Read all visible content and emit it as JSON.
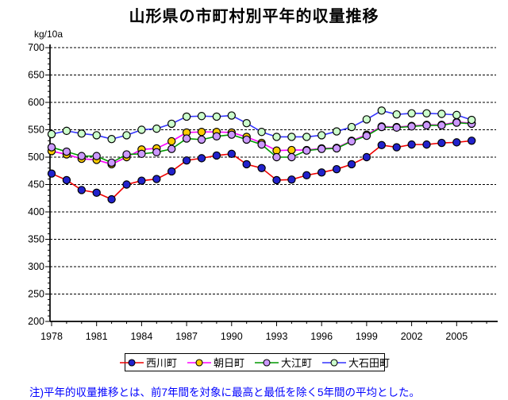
{
  "title": "山形県の市町村別平年的収量推移",
  "note": "注)平年的収量推移とは、前7年間を対象に最高と最低を除く5年間の平均とした。",
  "chart_data": {
    "type": "line",
    "title": "山形県の市町村別平年的収量推移",
    "ylabel": "kg/10a",
    "xlabel": "",
    "ylim": [
      200,
      700
    ],
    "ytick_interval": 50,
    "yticks": [
      700,
      650,
      600,
      550,
      500,
      450,
      400,
      350,
      300,
      250,
      200
    ],
    "xticks": [
      1978,
      1981,
      1984,
      1987,
      1990,
      1993,
      1996,
      1999,
      2002,
      2005
    ],
    "years": [
      1978,
      1979,
      1980,
      1981,
      1982,
      1983,
      1984,
      1985,
      1986,
      1987,
      1988,
      1989,
      1990,
      1991,
      1992,
      1993,
      1994,
      1995,
      1996,
      1997,
      1998,
      1999,
      2000,
      2001,
      2002,
      2003,
      2004,
      2005,
      2006
    ],
    "grid": "horizontal-dashed",
    "legend_position": "bottom",
    "series": [
      {
        "name": "西川町",
        "line_color": "#EE0000",
        "marker_color": "#2222CC",
        "marker": "circle",
        "values": [
          470,
          458,
          440,
          435,
          423,
          450,
          457,
          460,
          474,
          494,
          498,
          503,
          506,
          487,
          480,
          458,
          459,
          467,
          472,
          478,
          487,
          500,
          522,
          518,
          523,
          523,
          526,
          527,
          530
        ]
      },
      {
        "name": "朝日町",
        "line_color": "#FF00FF",
        "marker_color": "#FFCC00",
        "marker": "circle",
        "values": [
          511,
          505,
          497,
          495,
          487,
          500,
          514,
          516,
          529,
          545,
          546,
          546,
          545,
          537,
          526,
          512,
          513,
          513,
          516,
          517,
          530,
          541,
          556,
          555,
          557,
          559,
          559,
          564,
          562
        ]
      },
      {
        "name": "大江町",
        "line_color": "#009900",
        "marker_color": "#CC99FF",
        "marker": "circle",
        "values": [
          518,
          510,
          502,
          502,
          490,
          505,
          506,
          509,
          515,
          534,
          532,
          538,
          541,
          532,
          523,
          500,
          500,
          512,
          515,
          516,
          529,
          539,
          555,
          554,
          556,
          558,
          558,
          563,
          561
        ]
      },
      {
        "name": "大石田町",
        "line_color": "#3333FF",
        "marker_color": "#CCFFCC",
        "marker": "circle",
        "values": [
          542,
          548,
          543,
          540,
          533,
          540,
          550,
          552,
          561,
          574,
          575,
          574,
          576,
          562,
          546,
          537,
          537,
          537,
          540,
          547,
          555,
          569,
          585,
          578,
          580,
          580,
          579,
          577,
          568
        ]
      }
    ]
  }
}
